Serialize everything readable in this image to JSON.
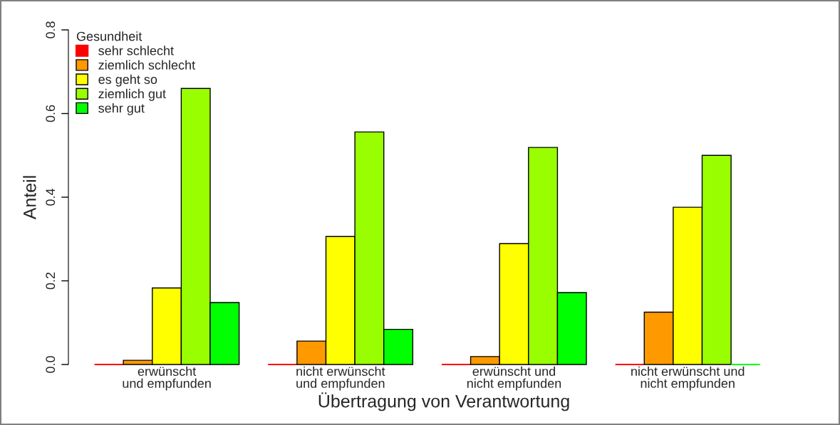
{
  "chart_data": {
    "type": "bar",
    "xlabel": "Übertragung von Verantwortung",
    "ylabel": "Anteil",
    "legend_title": "Gesundheit",
    "categories": [
      "erwünscht\nund empfunden",
      "nicht erwünscht\nund empfunden",
      "erwünscht und\nnicht empfunden",
      "nicht erwünscht und\nnicht empfunden"
    ],
    "series": [
      {
        "name": "sehr schlecht",
        "color": "#ff0000",
        "values": [
          0,
          0,
          0,
          0
        ]
      },
      {
        "name": "ziemlich schlecht",
        "color": "#ff9900",
        "values": [
          0.01,
          0.056,
          0.019,
          0.125
        ]
      },
      {
        "name": "es geht so",
        "color": "#ffff00",
        "values": [
          0.183,
          0.306,
          0.289,
          0.376
        ]
      },
      {
        "name": "ziemlich gut",
        "color": "#99ff00",
        "values": [
          0.66,
          0.556,
          0.519,
          0.5
        ]
      },
      {
        "name": "sehr gut",
        "color": "#00ff00",
        "values": [
          0.148,
          0.084,
          0.172,
          0
        ]
      }
    ],
    "ylim": [
      0,
      0.8
    ],
    "yticks": [
      {
        "value": 0,
        "label": "0.0"
      },
      0.2,
      0.4,
      0.6,
      0.8
    ],
    "grid": false,
    "legend": "top left"
  }
}
